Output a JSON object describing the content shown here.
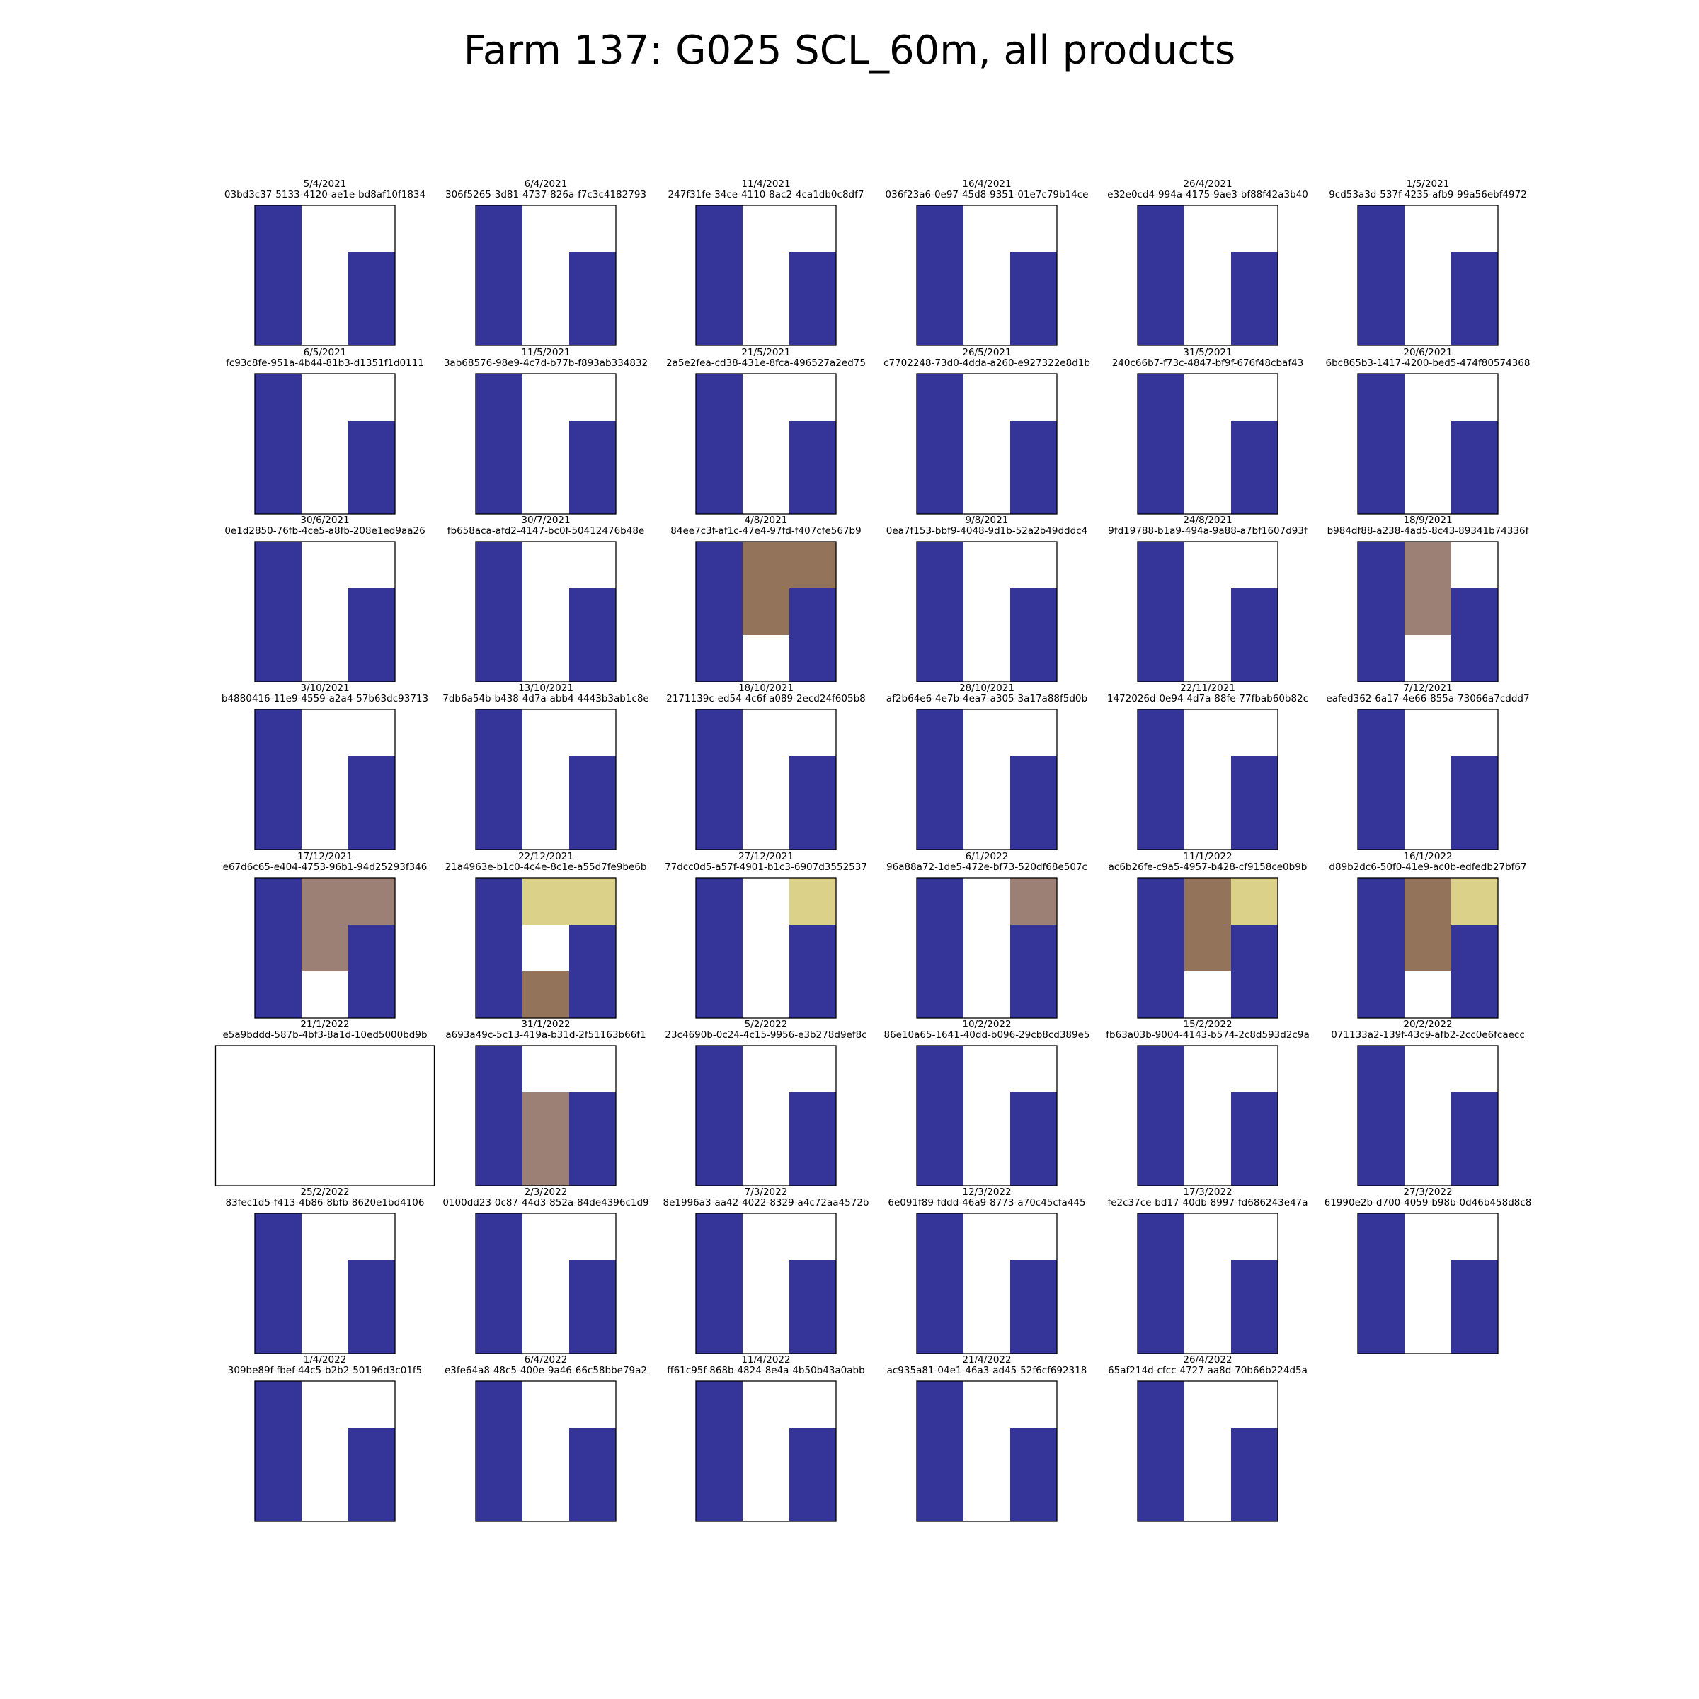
{
  "figure": {
    "title": "Farm 137: G025 SCL_60m, all products"
  },
  "colors": {
    "W": "#ffffff",
    "B": "#353599",
    "D": "#93735a",
    "L": "#9c7f75",
    "Y": "#dcd189"
  },
  "chart_data": {
    "type": "heatmap",
    "title": "Farm 137: G025 SCL_60m, all products",
    "value_encoding": "cell codes: W=white, B=dark blue, D=brown, L=light brown, Y=yellow; grid rows top-to-bottom",
    "panels": [
      {
        "date": "5/4/2021",
        "product": "03bd3c37-5133-4120-ae1e-bd8af10f1834",
        "grid": [
          [
            "B",
            "W",
            "W"
          ],
          [
            "B",
            "W",
            "B"
          ],
          [
            "B",
            "W",
            "B"
          ]
        ]
      },
      {
        "date": "6/4/2021",
        "product": "306f5265-3d81-4737-826a-f7c3c4182793",
        "grid": [
          [
            "B",
            "W",
            "W"
          ],
          [
            "B",
            "W",
            "B"
          ],
          [
            "B",
            "W",
            "B"
          ]
        ]
      },
      {
        "date": "11/4/2021",
        "product": "247f31fe-34ce-4110-8ac2-4ca1db0c8df7",
        "grid": [
          [
            "B",
            "W",
            "W"
          ],
          [
            "B",
            "W",
            "B"
          ],
          [
            "B",
            "W",
            "B"
          ]
        ]
      },
      {
        "date": "16/4/2021",
        "product": "036f23a6-0e97-45d8-9351-01e7c79b14ce",
        "grid": [
          [
            "B",
            "W",
            "W"
          ],
          [
            "B",
            "W",
            "B"
          ],
          [
            "B",
            "W",
            "B"
          ]
        ]
      },
      {
        "date": "26/4/2021",
        "product": "e32e0cd4-994a-4175-9ae3-bf88f42a3b40",
        "grid": [
          [
            "B",
            "W",
            "W"
          ],
          [
            "B",
            "W",
            "B"
          ],
          [
            "B",
            "W",
            "B"
          ]
        ]
      },
      {
        "date": "1/5/2021",
        "product": "9cd53a3d-537f-4235-afb9-99a56ebf4972",
        "grid": [
          [
            "B",
            "W",
            "W"
          ],
          [
            "B",
            "W",
            "B"
          ],
          [
            "B",
            "W",
            "B"
          ]
        ]
      },
      {
        "date": "6/5/2021",
        "product": "fc93c8fe-951a-4b44-81b3-d1351f1d0111",
        "grid": [
          [
            "B",
            "W",
            "W"
          ],
          [
            "B",
            "W",
            "B"
          ],
          [
            "B",
            "W",
            "B"
          ]
        ]
      },
      {
        "date": "11/5/2021",
        "product": "3ab68576-98e9-4c7d-b77b-f893ab334832",
        "grid": [
          [
            "B",
            "W",
            "W"
          ],
          [
            "B",
            "W",
            "B"
          ],
          [
            "B",
            "W",
            "B"
          ]
        ]
      },
      {
        "date": "21/5/2021",
        "product": "2a5e2fea-cd38-431e-8fca-496527a2ed75",
        "grid": [
          [
            "B",
            "W",
            "W"
          ],
          [
            "B",
            "W",
            "B"
          ],
          [
            "B",
            "W",
            "B"
          ]
        ]
      },
      {
        "date": "26/5/2021",
        "product": "c7702248-73d0-4dda-a260-e927322e8d1b",
        "grid": [
          [
            "B",
            "W",
            "W"
          ],
          [
            "B",
            "W",
            "B"
          ],
          [
            "B",
            "W",
            "B"
          ]
        ]
      },
      {
        "date": "31/5/2021",
        "product": "240c66b7-f73c-4847-bf9f-676f48cbaf43",
        "grid": [
          [
            "B",
            "W",
            "W"
          ],
          [
            "B",
            "W",
            "B"
          ],
          [
            "B",
            "W",
            "B"
          ]
        ]
      },
      {
        "date": "20/6/2021",
        "product": "6bc865b3-1417-4200-bed5-474f80574368",
        "grid": [
          [
            "B",
            "W",
            "W"
          ],
          [
            "B",
            "W",
            "B"
          ],
          [
            "B",
            "W",
            "B"
          ]
        ]
      },
      {
        "date": "30/6/2021",
        "product": "0e1d2850-76fb-4ce5-a8fb-208e1ed9aa26",
        "grid": [
          [
            "B",
            "W",
            "W"
          ],
          [
            "B",
            "W",
            "B"
          ],
          [
            "B",
            "W",
            "B"
          ]
        ]
      },
      {
        "date": "30/7/2021",
        "product": "fb658aca-afd2-4147-bc0f-50412476b48e",
        "grid": [
          [
            "B",
            "W",
            "W"
          ],
          [
            "B",
            "W",
            "B"
          ],
          [
            "B",
            "W",
            "B"
          ]
        ]
      },
      {
        "date": "4/8/2021",
        "product": "84ee7c3f-af1c-47e4-97fd-f407cfe567b9",
        "grid": [
          [
            "B",
            "D",
            "D"
          ],
          [
            "B",
            "D",
            "B"
          ],
          [
            "B",
            "W",
            "B"
          ]
        ]
      },
      {
        "date": "9/8/2021",
        "product": "0ea7f153-bbf9-4048-9d1b-52a2b49dddc4",
        "grid": [
          [
            "B",
            "W",
            "W"
          ],
          [
            "B",
            "W",
            "B"
          ],
          [
            "B",
            "W",
            "B"
          ]
        ]
      },
      {
        "date": "24/8/2021",
        "product": "9fd19788-b1a9-494a-9a88-a7bf1607d93f",
        "grid": [
          [
            "B",
            "W",
            "W"
          ],
          [
            "B",
            "W",
            "B"
          ],
          [
            "B",
            "W",
            "B"
          ]
        ]
      },
      {
        "date": "18/9/2021",
        "product": "b984df88-a238-4ad5-8c43-89341b74336f",
        "grid": [
          [
            "B",
            "L",
            "W"
          ],
          [
            "B",
            "L",
            "B"
          ],
          [
            "B",
            "W",
            "B"
          ]
        ]
      },
      {
        "date": "3/10/2021",
        "product": "b4880416-11e9-4559-a2a4-57b63dc93713",
        "grid": [
          [
            "B",
            "W",
            "W"
          ],
          [
            "B",
            "W",
            "B"
          ],
          [
            "B",
            "W",
            "B"
          ]
        ]
      },
      {
        "date": "13/10/2021",
        "product": "7db6a54b-b438-4d7a-abb4-4443b3ab1c8e",
        "grid": [
          [
            "B",
            "W",
            "W"
          ],
          [
            "B",
            "W",
            "B"
          ],
          [
            "B",
            "W",
            "B"
          ]
        ]
      },
      {
        "date": "18/10/2021",
        "product": "2171139c-ed54-4c6f-a089-2ecd24f605b8",
        "grid": [
          [
            "B",
            "W",
            "W"
          ],
          [
            "B",
            "W",
            "B"
          ],
          [
            "B",
            "W",
            "B"
          ]
        ]
      },
      {
        "date": "28/10/2021",
        "product": "af2b64e6-4e7b-4ea7-a305-3a17a88f5d0b",
        "grid": [
          [
            "B",
            "W",
            "W"
          ],
          [
            "B",
            "W",
            "B"
          ],
          [
            "B",
            "W",
            "B"
          ]
        ]
      },
      {
        "date": "22/11/2021",
        "product": "1472026d-0e94-4d7a-88fe-77fbab60b82c",
        "grid": [
          [
            "B",
            "W",
            "W"
          ],
          [
            "B",
            "W",
            "B"
          ],
          [
            "B",
            "W",
            "B"
          ]
        ]
      },
      {
        "date": "7/12/2021",
        "product": "eafed362-6a17-4e66-855a-73066a7cddd7",
        "grid": [
          [
            "B",
            "W",
            "W"
          ],
          [
            "B",
            "W",
            "B"
          ],
          [
            "B",
            "W",
            "B"
          ]
        ]
      },
      {
        "date": "17/12/2021",
        "product": "e67d6c65-e404-4753-96b1-94d25293f346",
        "grid": [
          [
            "B",
            "L",
            "L"
          ],
          [
            "B",
            "L",
            "B"
          ],
          [
            "B",
            "W",
            "B"
          ]
        ]
      },
      {
        "date": "22/12/2021",
        "product": "21a4963e-b1c0-4c4e-8c1e-a55d7fe9be6b",
        "grid": [
          [
            "B",
            "Y",
            "Y"
          ],
          [
            "B",
            "W",
            "B"
          ],
          [
            "B",
            "D",
            "B"
          ]
        ]
      },
      {
        "date": "27/12/2021",
        "product": "77dcc0d5-a57f-4901-b1c3-6907d3552537",
        "grid": [
          [
            "B",
            "W",
            "Y"
          ],
          [
            "B",
            "W",
            "B"
          ],
          [
            "B",
            "W",
            "B"
          ]
        ]
      },
      {
        "date": "6/1/2022",
        "product": "96a88a72-1de5-472e-bf73-520df68e507c",
        "grid": [
          [
            "B",
            "W",
            "L"
          ],
          [
            "B",
            "W",
            "B"
          ],
          [
            "B",
            "W",
            "B"
          ]
        ]
      },
      {
        "date": "11/1/2022",
        "product": "ac6b26fe-c9a5-4957-b428-cf9158ce0b9b",
        "grid": [
          [
            "B",
            "D",
            "Y"
          ],
          [
            "B",
            "D",
            "B"
          ],
          [
            "B",
            "W",
            "B"
          ]
        ]
      },
      {
        "date": "16/1/2022",
        "product": "d89b2dc6-50f0-41e9-ac0b-edfedb27bf67",
        "grid": [
          [
            "B",
            "D",
            "Y"
          ],
          [
            "B",
            "D",
            "B"
          ],
          [
            "B",
            "W",
            "B"
          ]
        ]
      },
      {
        "date": "21/1/2022",
        "product": "e5a9bddd-587b-4bf3-8a1d-10ed5000bd9b",
        "wide": true,
        "grid": [
          [
            "W",
            "W",
            "W"
          ],
          [
            "W",
            "W",
            "W"
          ],
          [
            "W",
            "W",
            "W"
          ]
        ]
      },
      {
        "date": "31/1/2022",
        "product": "a693a49c-5c13-419a-b31d-2f51163b66f1",
        "grid": [
          [
            "B",
            "W",
            "W"
          ],
          [
            "B",
            "L",
            "B"
          ],
          [
            "B",
            "L",
            "B"
          ]
        ]
      },
      {
        "date": "5/2/2022",
        "product": "23c4690b-0c24-4c15-9956-e3b278d9ef8c",
        "grid": [
          [
            "B",
            "W",
            "W"
          ],
          [
            "B",
            "W",
            "B"
          ],
          [
            "B",
            "W",
            "B"
          ]
        ]
      },
      {
        "date": "10/2/2022",
        "product": "86e10a65-1641-40dd-b096-29cb8cd389e5",
        "grid": [
          [
            "B",
            "W",
            "W"
          ],
          [
            "B",
            "W",
            "B"
          ],
          [
            "B",
            "W",
            "B"
          ]
        ]
      },
      {
        "date": "15/2/2022",
        "product": "fb63a03b-9004-4143-b574-2c8d593d2c9a",
        "grid": [
          [
            "B",
            "W",
            "W"
          ],
          [
            "B",
            "W",
            "B"
          ],
          [
            "B",
            "W",
            "B"
          ]
        ]
      },
      {
        "date": "20/2/2022",
        "product": "071133a2-139f-43c9-afb2-2cc0e6fcaecc",
        "grid": [
          [
            "B",
            "W",
            "W"
          ],
          [
            "B",
            "W",
            "B"
          ],
          [
            "B",
            "W",
            "B"
          ]
        ]
      },
      {
        "date": "25/2/2022",
        "product": "83fec1d5-f413-4b86-8bfb-8620e1bd4106",
        "grid": [
          [
            "B",
            "W",
            "W"
          ],
          [
            "B",
            "W",
            "B"
          ],
          [
            "B",
            "W",
            "B"
          ]
        ]
      },
      {
        "date": "2/3/2022",
        "product": "0100dd23-0c87-44d3-852a-84de4396c1d9",
        "grid": [
          [
            "B",
            "W",
            "W"
          ],
          [
            "B",
            "W",
            "B"
          ],
          [
            "B",
            "W",
            "B"
          ]
        ]
      },
      {
        "date": "7/3/2022",
        "product": "8e1996a3-aa42-4022-8329-a4c72aa4572b",
        "grid": [
          [
            "B",
            "W",
            "W"
          ],
          [
            "B",
            "W",
            "B"
          ],
          [
            "B",
            "W",
            "B"
          ]
        ]
      },
      {
        "date": "12/3/2022",
        "product": "6e091f89-fddd-46a9-8773-a70c45cfa445",
        "grid": [
          [
            "B",
            "W",
            "W"
          ],
          [
            "B",
            "W",
            "B"
          ],
          [
            "B",
            "W",
            "B"
          ]
        ]
      },
      {
        "date": "17/3/2022",
        "product": "fe2c37ce-bd17-40db-8997-fd686243e47a",
        "grid": [
          [
            "B",
            "W",
            "W"
          ],
          [
            "B",
            "W",
            "B"
          ],
          [
            "B",
            "W",
            "B"
          ]
        ]
      },
      {
        "date": "27/3/2022",
        "product": "61990e2b-d700-4059-b98b-0d46b458d8c8",
        "grid": [
          [
            "B",
            "W",
            "W"
          ],
          [
            "B",
            "W",
            "B"
          ],
          [
            "B",
            "W",
            "B"
          ]
        ]
      },
      {
        "date": "1/4/2022",
        "product": "309be89f-fbef-44c5-b2b2-50196d3c01f5",
        "grid": [
          [
            "B",
            "W",
            "W"
          ],
          [
            "B",
            "W",
            "B"
          ],
          [
            "B",
            "W",
            "B"
          ]
        ]
      },
      {
        "date": "6/4/2022",
        "product": "e3fe64a8-48c5-400e-9a46-66c58bbe79a2",
        "grid": [
          [
            "B",
            "W",
            "W"
          ],
          [
            "B",
            "W",
            "B"
          ],
          [
            "B",
            "W",
            "B"
          ]
        ]
      },
      {
        "date": "11/4/2022",
        "product": "ff61c95f-868b-4824-8e4a-4b50b43a0abb",
        "grid": [
          [
            "B",
            "W",
            "W"
          ],
          [
            "B",
            "W",
            "B"
          ],
          [
            "B",
            "W",
            "B"
          ]
        ]
      },
      {
        "date": "21/4/2022",
        "product": "ac935a81-04e1-46a3-ad45-52f6cf692318",
        "grid": [
          [
            "B",
            "W",
            "W"
          ],
          [
            "B",
            "W",
            "B"
          ],
          [
            "B",
            "W",
            "B"
          ]
        ]
      },
      {
        "date": "26/4/2022",
        "product": "65af214d-cfcc-4727-aa8d-70b66b224d5a",
        "grid": [
          [
            "B",
            "W",
            "W"
          ],
          [
            "B",
            "W",
            "B"
          ],
          [
            "B",
            "W",
            "B"
          ]
        ]
      }
    ]
  }
}
